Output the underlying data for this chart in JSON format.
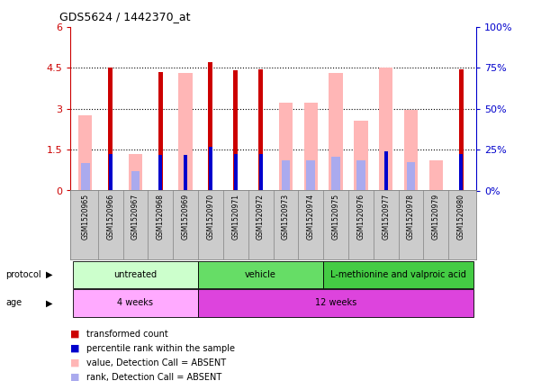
{
  "title": "GDS5624 / 1442370_at",
  "samples": [
    "GSM1520965",
    "GSM1520966",
    "GSM1520967",
    "GSM1520968",
    "GSM1520969",
    "GSM1520970",
    "GSM1520971",
    "GSM1520972",
    "GSM1520973",
    "GSM1520974",
    "GSM1520975",
    "GSM1520976",
    "GSM1520977",
    "GSM1520978",
    "GSM1520979",
    "GSM1520980"
  ],
  "red_values": [
    0,
    4.5,
    0,
    4.35,
    0,
    4.7,
    4.4,
    4.45,
    0,
    0,
    0,
    0,
    0,
    0,
    0,
    4.45
  ],
  "pink_values": [
    2.75,
    0,
    1.35,
    0,
    4.3,
    0,
    0,
    0,
    3.2,
    3.2,
    4.3,
    2.55,
    4.5,
    2.95,
    1.1,
    0
  ],
  "blue_values": [
    0,
    1.35,
    0,
    1.3,
    1.3,
    1.6,
    1.35,
    1.35,
    0,
    0,
    0,
    0,
    1.45,
    0,
    0,
    1.35
  ],
  "lightblue_values": [
    1.0,
    0,
    0.7,
    0,
    0,
    0,
    0,
    0,
    1.1,
    1.1,
    1.25,
    1.1,
    0,
    1.05,
    0,
    0
  ],
  "ylim": [
    0,
    6
  ],
  "yticks": [
    0,
    1.5,
    3.0,
    4.5,
    6
  ],
  "ytick_labels": [
    "0",
    "1.5",
    "3",
    "4.5",
    "6"
  ],
  "y2tick_labels": [
    "0%",
    "25%",
    "50%",
    "75%",
    "100%"
  ],
  "protocol_groups": [
    {
      "label": "untreated",
      "start": 0,
      "end": 5,
      "color": "#ccffcc"
    },
    {
      "label": "vehicle",
      "start": 5,
      "end": 10,
      "color": "#66dd66"
    },
    {
      "label": "L-methionine and valproic acid",
      "start": 10,
      "end": 16,
      "color": "#44cc44"
    }
  ],
  "age_groups": [
    {
      "label": "4 weeks",
      "start": 0,
      "end": 5,
      "color": "#ffaaff"
    },
    {
      "label": "12 weeks",
      "start": 5,
      "end": 16,
      "color": "#dd44dd"
    }
  ],
  "red_color": "#cc0000",
  "pink_color": "#ffb6b6",
  "blue_color": "#0000cc",
  "lightblue_color": "#aaaaee",
  "ylabel_color": "#cc0000",
  "y2label_color": "#0000cc",
  "gray_bg": "#cccccc"
}
